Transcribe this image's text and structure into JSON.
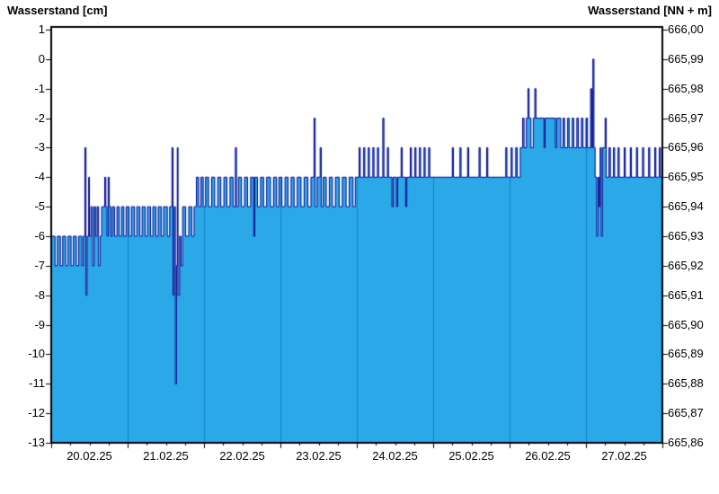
{
  "chart_data": {
    "type": "area",
    "title": "Wasserstand",
    "left_axis": {
      "title": "Wasserstand [cm]",
      "unit": "cm",
      "range": [
        -13,
        1
      ],
      "ticks": [
        "1",
        "0",
        "-1",
        "-2",
        "-3",
        "-4",
        "-5",
        "-6",
        "-7",
        "-8",
        "-9",
        "-10",
        "-11",
        "-12",
        "-13"
      ]
    },
    "right_axis": {
      "title": "Wasserstand [NN + m]",
      "unit": "NN + m",
      "range": [
        665.86,
        666.0
      ],
      "ticks": [
        "666,00",
        "665,99",
        "665,98",
        "665,97",
        "665,96",
        "665,95",
        "665,94",
        "665,93",
        "665,92",
        "665,91",
        "665,90",
        "665,89",
        "665,88",
        "665,87",
        "665,86"
      ]
    },
    "x_axis": {
      "tick_labels": [
        "20.02.25",
        "21.02.25",
        "22.02.25",
        "23.02.25",
        "24.02.25",
        "25.02.25",
        "26.02.25",
        "27.02.25"
      ],
      "range_days": [
        0,
        8
      ],
      "gridlines_at_day_boundaries": true,
      "minor_tick_days": 0.25
    },
    "colors": {
      "fill": "#2AA8E8",
      "line": "#00008B",
      "grid": "#1380C4",
      "frame": "#000000",
      "background": "#FFFFFF"
    },
    "legend": "none",
    "series": [
      {
        "name": "Wasserstand",
        "step": true,
        "x_unit": "days_from_20.02.25",
        "y_unit": "cm",
        "points": [
          [
            0,
            -6
          ],
          [
            0.05,
            -7
          ],
          [
            0.08,
            -6
          ],
          [
            0.12,
            -7
          ],
          [
            0.15,
            -6
          ],
          [
            0.19,
            -7
          ],
          [
            0.22,
            -6
          ],
          [
            0.26,
            -7
          ],
          [
            0.29,
            -6
          ],
          [
            0.33,
            -7
          ],
          [
            0.36,
            -6
          ],
          [
            0.4,
            -7
          ],
          [
            0.42,
            -6
          ],
          [
            0.44,
            -3
          ],
          [
            0.455,
            -8
          ],
          [
            0.47,
            -6
          ],
          [
            0.49,
            -4
          ],
          [
            0.5,
            -6
          ],
          [
            0.52,
            -5
          ],
          [
            0.54,
            -7
          ],
          [
            0.56,
            -5
          ],
          [
            0.58,
            -6
          ],
          [
            0.6,
            -5
          ],
          [
            0.62,
            -7
          ],
          [
            0.64,
            -6
          ],
          [
            0.66,
            -5
          ],
          [
            0.7,
            -4
          ],
          [
            0.715,
            -5
          ],
          [
            0.73,
            -6
          ],
          [
            0.745,
            -4
          ],
          [
            0.76,
            -5
          ],
          [
            0.78,
            -6
          ],
          [
            0.8,
            -5
          ],
          [
            0.83,
            -6
          ],
          [
            0.86,
            -5
          ],
          [
            0.89,
            -6
          ],
          [
            0.92,
            -5
          ],
          [
            0.95,
            -6
          ],
          [
            0.98,
            -5
          ],
          [
            1.02,
            -6
          ],
          [
            1.05,
            -5
          ],
          [
            1.09,
            -6
          ],
          [
            1.12,
            -5
          ],
          [
            1.16,
            -6
          ],
          [
            1.19,
            -5
          ],
          [
            1.23,
            -6
          ],
          [
            1.26,
            -5
          ],
          [
            1.3,
            -6
          ],
          [
            1.33,
            -5
          ],
          [
            1.37,
            -6
          ],
          [
            1.4,
            -5
          ],
          [
            1.44,
            -6
          ],
          [
            1.47,
            -5
          ],
          [
            1.52,
            -6
          ],
          [
            1.55,
            -5
          ],
          [
            1.58,
            -3
          ],
          [
            1.595,
            -8
          ],
          [
            1.61,
            -5
          ],
          [
            1.625,
            -11
          ],
          [
            1.64,
            -7
          ],
          [
            1.65,
            -3
          ],
          [
            1.66,
            -8
          ],
          [
            1.68,
            -6
          ],
          [
            1.7,
            -7
          ],
          [
            1.72,
            -5
          ],
          [
            1.76,
            -6
          ],
          [
            1.8,
            -5
          ],
          [
            1.84,
            -6
          ],
          [
            1.87,
            -5
          ],
          [
            1.9,
            -4
          ],
          [
            1.93,
            -5
          ],
          [
            1.96,
            -4
          ],
          [
            1.99,
            -5
          ],
          [
            2.02,
            -4
          ],
          [
            2.06,
            -5
          ],
          [
            2.1,
            -4
          ],
          [
            2.14,
            -5
          ],
          [
            2.18,
            -4
          ],
          [
            2.22,
            -5
          ],
          [
            2.26,
            -4
          ],
          [
            2.3,
            -5
          ],
          [
            2.34,
            -4
          ],
          [
            2.38,
            -5
          ],
          [
            2.41,
            -3
          ],
          [
            2.425,
            -5
          ],
          [
            2.45,
            -4
          ],
          [
            2.49,
            -5
          ],
          [
            2.53,
            -4
          ],
          [
            2.57,
            -5
          ],
          [
            2.61,
            -4
          ],
          [
            2.65,
            -6
          ],
          [
            2.665,
            -4
          ],
          [
            2.7,
            -5
          ],
          [
            2.74,
            -4
          ],
          [
            2.78,
            -5
          ],
          [
            2.82,
            -4
          ],
          [
            2.87,
            -5
          ],
          [
            2.91,
            -4
          ],
          [
            2.95,
            -5
          ],
          [
            2.98,
            -4
          ],
          [
            3.02,
            -5
          ],
          [
            3.06,
            -4
          ],
          [
            3.1,
            -5
          ],
          [
            3.14,
            -4
          ],
          [
            3.18,
            -5
          ],
          [
            3.22,
            -4
          ],
          [
            3.27,
            -5
          ],
          [
            3.31,
            -4
          ],
          [
            3.36,
            -5
          ],
          [
            3.4,
            -4
          ],
          [
            3.44,
            -2
          ],
          [
            3.455,
            -5
          ],
          [
            3.48,
            -4
          ],
          [
            3.52,
            -3
          ],
          [
            3.535,
            -5
          ],
          [
            3.56,
            -4
          ],
          [
            3.6,
            -5
          ],
          [
            3.64,
            -4
          ],
          [
            3.68,
            -5
          ],
          [
            3.72,
            -4
          ],
          [
            3.77,
            -5
          ],
          [
            3.81,
            -4
          ],
          [
            3.86,
            -5
          ],
          [
            3.9,
            -4
          ],
          [
            3.95,
            -5
          ],
          [
            3.98,
            -4
          ],
          [
            4.03,
            -3
          ],
          [
            4.045,
            -4
          ],
          [
            4.09,
            -3
          ],
          [
            4.105,
            -4
          ],
          [
            4.15,
            -3
          ],
          [
            4.165,
            -4
          ],
          [
            4.21,
            -3
          ],
          [
            4.225,
            -4
          ],
          [
            4.27,
            -3
          ],
          [
            4.285,
            -4
          ],
          [
            4.34,
            -2
          ],
          [
            4.355,
            -4
          ],
          [
            4.4,
            -3
          ],
          [
            4.415,
            -4
          ],
          [
            4.46,
            -5
          ],
          [
            4.475,
            -4
          ],
          [
            4.52,
            -5
          ],
          [
            4.535,
            -4
          ],
          [
            4.58,
            -3
          ],
          [
            4.595,
            -4
          ],
          [
            4.64,
            -5
          ],
          [
            4.655,
            -4
          ],
          [
            4.7,
            -3
          ],
          [
            4.715,
            -4
          ],
          [
            4.76,
            -3
          ],
          [
            4.775,
            -4
          ],
          [
            4.82,
            -3
          ],
          [
            4.835,
            -4
          ],
          [
            4.88,
            -3
          ],
          [
            4.895,
            -4
          ],
          [
            4.94,
            -3
          ],
          [
            4.955,
            -4
          ],
          [
            5.1,
            -4
          ],
          [
            5.25,
            -3
          ],
          [
            5.265,
            -4
          ],
          [
            5.35,
            -3
          ],
          [
            5.365,
            -4
          ],
          [
            5.45,
            -3
          ],
          [
            5.465,
            -4
          ],
          [
            5.6,
            -3
          ],
          [
            5.615,
            -4
          ],
          [
            5.7,
            -3
          ],
          [
            5.715,
            -4
          ],
          [
            5.85,
            -4
          ],
          [
            5.95,
            -3
          ],
          [
            5.965,
            -4
          ],
          [
            6.02,
            -3
          ],
          [
            6.035,
            -4
          ],
          [
            6.08,
            -3
          ],
          [
            6.1,
            -4
          ],
          [
            6.14,
            -3
          ],
          [
            6.17,
            -2
          ],
          [
            6.19,
            -3
          ],
          [
            6.22,
            -2
          ],
          [
            6.24,
            -1
          ],
          [
            6.255,
            -2
          ],
          [
            6.28,
            -3
          ],
          [
            6.31,
            -2
          ],
          [
            6.33,
            -1
          ],
          [
            6.345,
            -2
          ],
          [
            6.45,
            -3
          ],
          [
            6.465,
            -2
          ],
          [
            6.6,
            -3
          ],
          [
            6.615,
            -2
          ],
          [
            6.67,
            -3
          ],
          [
            6.7,
            -2
          ],
          [
            6.72,
            -3
          ],
          [
            6.76,
            -2
          ],
          [
            6.78,
            -3
          ],
          [
            6.82,
            -2
          ],
          [
            6.84,
            -3
          ],
          [
            6.88,
            -2
          ],
          [
            6.9,
            -3
          ],
          [
            6.94,
            -2
          ],
          [
            6.96,
            -3
          ],
          [
            7.0,
            -2
          ],
          [
            7.02,
            -3
          ],
          [
            7.06,
            -1
          ],
          [
            7.075,
            -3
          ],
          [
            7.09,
            0
          ],
          [
            7.105,
            -3
          ],
          [
            7.12,
            -4
          ],
          [
            7.14,
            -6
          ],
          [
            7.155,
            -4
          ],
          [
            7.17,
            -5
          ],
          [
            7.185,
            -3
          ],
          [
            7.2,
            -6
          ],
          [
            7.215,
            -3
          ],
          [
            7.25,
            -2
          ],
          [
            7.265,
            -4
          ],
          [
            7.3,
            -3
          ],
          [
            7.32,
            -4
          ],
          [
            7.36,
            -3
          ],
          [
            7.375,
            -4
          ],
          [
            7.42,
            -3
          ],
          [
            7.435,
            -4
          ],
          [
            7.5,
            -3
          ],
          [
            7.515,
            -4
          ],
          [
            7.58,
            -3
          ],
          [
            7.595,
            -4
          ],
          [
            7.66,
            -3
          ],
          [
            7.675,
            -4
          ],
          [
            7.74,
            -3
          ],
          [
            7.755,
            -4
          ],
          [
            7.82,
            -3
          ],
          [
            7.835,
            -4
          ],
          [
            7.9,
            -3
          ],
          [
            7.915,
            -4
          ],
          [
            7.96,
            -3
          ],
          [
            7.975,
            -4
          ]
        ]
      }
    ]
  }
}
